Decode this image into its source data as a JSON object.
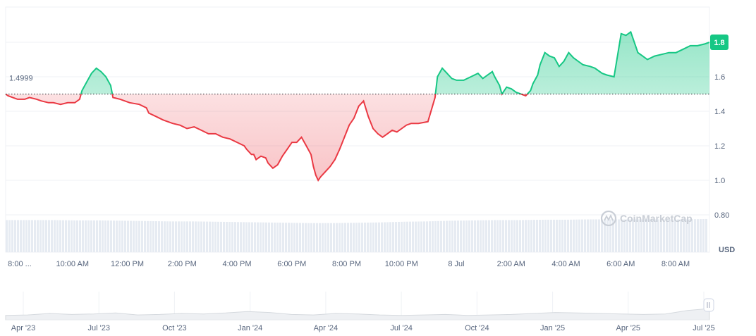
{
  "watermark": {
    "text": "CoinMarketCap",
    "icon": "coinmarketcap-logo-icon"
  },
  "chart_data": {
    "type": "area",
    "unit": "USD",
    "reference_label": "1.4999",
    "reference_value": 1.4999,
    "current_label": "1.8",
    "current_value": 1.8,
    "ylim": [
      0.8,
      2.0
    ],
    "y_ticks": [
      "1.8",
      "1.6",
      "1.4",
      "1.2",
      "1.0",
      "0.80"
    ],
    "y_tick_values": [
      1.8,
      1.6,
      1.4,
      1.2,
      1.0,
      0.8
    ],
    "x_ticks": [
      "8:00 ...",
      "10:00 AM",
      "12:00 PM",
      "2:00 PM",
      "4:00 PM",
      "6:00 PM",
      "8:00 PM",
      "10:00 PM",
      "8 Jul",
      "2:00 AM",
      "4:00 AM",
      "6:00 AM",
      "8:00 AM"
    ],
    "x_tick_hours": [
      0,
      2,
      4,
      6,
      8,
      10,
      12,
      14,
      16,
      18,
      20,
      22,
      24
    ],
    "x_range_hours": [
      0,
      24.4
    ],
    "above_color": "#16c784",
    "below_color": "#ea3943",
    "price_series": [
      [
        0.0,
        1.5
      ],
      [
        0.1,
        1.49
      ],
      [
        0.3,
        1.48
      ],
      [
        0.5,
        1.47
      ],
      [
        0.8,
        1.47
      ],
      [
        1.0,
        1.48
      ],
      [
        1.3,
        1.47
      ],
      [
        1.5,
        1.46
      ],
      [
        1.8,
        1.45
      ],
      [
        2.0,
        1.45
      ],
      [
        2.3,
        1.44
      ],
      [
        2.6,
        1.45
      ],
      [
        2.9,
        1.45
      ],
      [
        3.1,
        1.47
      ],
      [
        3.2,
        1.52
      ],
      [
        3.4,
        1.57
      ],
      [
        3.6,
        1.62
      ],
      [
        3.8,
        1.65
      ],
      [
        4.0,
        1.63
      ],
      [
        4.2,
        1.6
      ],
      [
        4.4,
        1.55
      ],
      [
        4.5,
        1.48
      ],
      [
        4.8,
        1.47
      ],
      [
        5.2,
        1.45
      ],
      [
        5.6,
        1.44
      ],
      [
        5.9,
        1.42
      ],
      [
        6.0,
        1.39
      ],
      [
        6.3,
        1.37
      ],
      [
        6.6,
        1.35
      ],
      [
        7.0,
        1.33
      ],
      [
        7.3,
        1.32
      ],
      [
        7.6,
        1.3
      ],
      [
        7.9,
        1.31
      ],
      [
        8.2,
        1.29
      ],
      [
        8.5,
        1.27
      ],
      [
        8.8,
        1.27
      ],
      [
        9.1,
        1.25
      ],
      [
        9.4,
        1.24
      ],
      [
        9.7,
        1.22
      ],
      [
        10.0,
        1.2
      ],
      [
        10.1,
        1.18
      ],
      [
        10.3,
        1.15
      ],
      [
        10.4,
        1.15
      ],
      [
        10.5,
        1.12
      ],
      [
        10.7,
        1.14
      ],
      [
        10.9,
        1.13
      ],
      [
        11.0,
        1.1
      ],
      [
        11.2,
        1.07
      ],
      [
        11.4,
        1.09
      ],
      [
        11.6,
        1.14
      ],
      [
        11.8,
        1.18
      ],
      [
        12.0,
        1.22
      ],
      [
        12.2,
        1.22
      ],
      [
        12.4,
        1.25
      ],
      [
        12.6,
        1.2
      ],
      [
        12.8,
        1.15
      ],
      [
        12.9,
        1.08
      ],
      [
        13.0,
        1.03
      ],
      [
        13.1,
        1.0
      ],
      [
        13.2,
        1.02
      ],
      [
        13.4,
        1.05
      ],
      [
        13.6,
        1.08
      ],
      [
        13.8,
        1.12
      ],
      [
        14.0,
        1.18
      ],
      [
        14.2,
        1.25
      ],
      [
        14.4,
        1.32
      ],
      [
        14.6,
        1.36
      ],
      [
        14.8,
        1.43
      ],
      [
        15.0,
        1.46
      ],
      [
        15.2,
        1.37
      ],
      [
        15.4,
        1.3
      ],
      [
        15.6,
        1.27
      ],
      [
        15.8,
        1.25
      ],
      [
        16.0,
        1.27
      ],
      [
        16.2,
        1.29
      ],
      [
        16.4,
        1.28
      ],
      [
        16.6,
        1.3
      ],
      [
        16.8,
        1.32
      ],
      [
        17.0,
        1.33
      ],
      [
        17.3,
        1.33
      ],
      [
        17.7,
        1.34
      ],
      [
        18.0,
        1.48
      ],
      [
        18.1,
        1.6
      ],
      [
        18.3,
        1.65
      ],
      [
        18.5,
        1.62
      ],
      [
        18.7,
        1.59
      ],
      [
        18.9,
        1.58
      ],
      [
        19.2,
        1.58
      ],
      [
        19.5,
        1.6
      ],
      [
        19.8,
        1.62
      ],
      [
        20.0,
        1.59
      ],
      [
        20.2,
        1.61
      ],
      [
        20.4,
        1.63
      ],
      [
        20.5,
        1.6
      ],
      [
        20.7,
        1.55
      ],
      [
        20.8,
        1.5
      ],
      [
        21.0,
        1.54
      ],
      [
        21.2,
        1.53
      ],
      [
        21.4,
        1.51
      ],
      [
        21.6,
        1.5
      ],
      [
        21.8,
        1.49
      ],
      [
        22.0,
        1.52
      ],
      [
        22.1,
        1.56
      ],
      [
        22.3,
        1.61
      ],
      [
        22.4,
        1.67
      ],
      [
        22.6,
        1.74
      ],
      [
        22.8,
        1.72
      ],
      [
        23.0,
        1.71
      ],
      [
        23.2,
        1.66
      ],
      [
        23.4,
        1.69
      ],
      [
        23.6,
        1.74
      ],
      [
        23.8,
        1.71
      ],
      [
        24.0,
        1.69
      ],
      [
        24.2,
        1.67
      ],
      [
        24.5,
        1.66
      ],
      [
        24.7,
        1.65
      ],
      [
        25.0,
        1.62
      ],
      [
        25.2,
        1.61
      ],
      [
        25.5,
        1.6
      ],
      [
        25.8,
        1.85
      ],
      [
        26.0,
        1.84
      ],
      [
        26.2,
        1.86
      ],
      [
        26.5,
        1.74
      ],
      [
        26.7,
        1.72
      ],
      [
        26.9,
        1.7
      ],
      [
        27.2,
        1.72
      ],
      [
        27.5,
        1.73
      ],
      [
        27.8,
        1.74
      ],
      [
        28.1,
        1.74
      ],
      [
        28.4,
        1.76
      ],
      [
        28.7,
        1.78
      ],
      [
        29.0,
        1.78
      ],
      [
        29.3,
        1.79
      ],
      [
        29.5,
        1.8
      ]
    ],
    "volume_series": [
      0.95,
      0.95,
      0.95,
      0.94,
      0.94,
      0.93,
      0.92,
      0.91,
      0.91,
      0.9,
      0.89,
      0.88,
      0.87,
      0.86,
      0.86,
      0.87,
      0.88,
      0.9,
      0.91,
      0.93,
      0.94,
      0.95,
      0.95,
      0.96,
      0.96,
      0.97,
      0.97,
      0.97,
      0.97,
      0.97,
      0.98
    ],
    "navigator": {
      "labels": [
        "Apr '23",
        "Jul '23",
        "Oct '23",
        "Jan '24",
        "Apr '24",
        "Jul '24",
        "Oct '24",
        "Jan '25",
        "Apr '25",
        "Jul '25"
      ],
      "trace": [
        0.3,
        0.35,
        0.5,
        0.4,
        0.45,
        0.55,
        0.35,
        0.4,
        0.5,
        0.45,
        0.55,
        0.7,
        0.6,
        0.4,
        0.35,
        0.5,
        0.45,
        0.35,
        0.3,
        0.35,
        0.4,
        0.3,
        0.35,
        0.4,
        0.5,
        0.6,
        0.55,
        0.5,
        0.45,
        0.4,
        0.45,
        0.8,
        1.0
      ]
    }
  }
}
